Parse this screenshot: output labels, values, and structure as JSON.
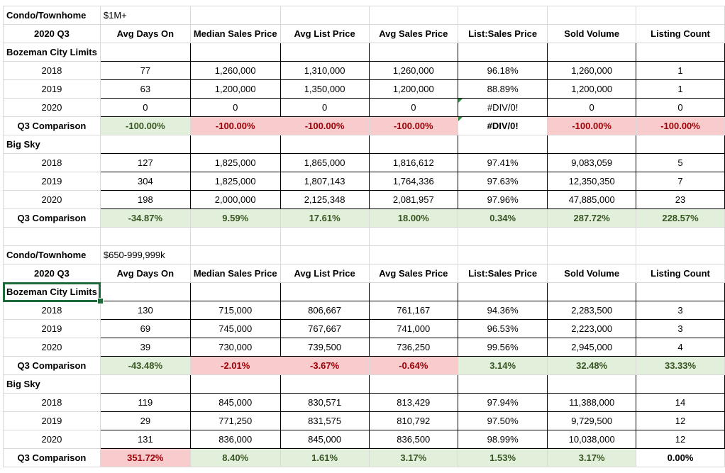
{
  "headers": [
    "2020 Q3",
    "Avg Days On",
    "Median Sales Price",
    "Avg List Price",
    "Avg Sales Price",
    "List:Sales Price",
    "Sold Volume",
    "Listing Count"
  ],
  "colors": {
    "positive_bg": "#e2efda",
    "positive_text": "#375623",
    "negative_bg": "#f8cbcc",
    "negative_text": "#9c0006",
    "selection": "#1e6a3b"
  },
  "block1": {
    "type_label": "Condo/Townhome",
    "price_range": "$1M+",
    "sections": [
      {
        "name": "Bozeman City Limits",
        "rows": [
          {
            "year": "2018",
            "cells": [
              "77",
              "1,260,000",
              "1,310,000",
              "1,260,000",
              "96.18%",
              "1,260,000",
              "1"
            ]
          },
          {
            "year": "2019",
            "cells": [
              "63",
              "1,200,000",
              "1,350,000",
              "1,200,000",
              "88.89%",
              "1,200,000",
              "1"
            ]
          },
          {
            "year": "2020",
            "cells": [
              "0",
              "0",
              "0",
              "0",
              "#DIV/0!",
              "0",
              "0"
            ]
          }
        ],
        "comparison_label": "Q3 Comparison",
        "comparison": [
          "-100.00%",
          "-100.00%",
          "-100.00%",
          "-100.00%",
          "#DIV/0!",
          "-100.00%",
          "-100.00%"
        ]
      },
      {
        "name": "Big Sky",
        "rows": [
          {
            "year": "2018",
            "cells": [
              "127",
              "1,825,000",
              "1,865,000",
              "1,816,612",
              "97.41%",
              "9,083,059",
              "5"
            ]
          },
          {
            "year": "2019",
            "cells": [
              "304",
              "1,825,000",
              "1,807,143",
              "1,764,336",
              "97.63%",
              "12,350,350",
              "7"
            ]
          },
          {
            "year": "2020",
            "cells": [
              "198",
              "2,000,000",
              "2,125,348",
              "2,081,957",
              "97.96%",
              "47,885,000",
              "23"
            ]
          }
        ],
        "comparison_label": "Q3 Comparison",
        "comparison": [
          "-34.87%",
          "9.59%",
          "17.61%",
          "18.00%",
          "0.34%",
          "287.72%",
          "228.57%"
        ]
      }
    ]
  },
  "block2": {
    "type_label": "Condo/Townhome",
    "price_range": "$650-999,999k",
    "sections": [
      {
        "name": "Bozeman City Limits",
        "rows": [
          {
            "year": "2018",
            "cells": [
              "130",
              "715,000",
              "806,667",
              "761,167",
              "94.36%",
              "2,283,500",
              "3"
            ]
          },
          {
            "year": "2019",
            "cells": [
              "69",
              "745,000",
              "767,667",
              "741,000",
              "96.53%",
              "2,223,000",
              "3"
            ]
          },
          {
            "year": "2020",
            "cells": [
              "39",
              "730,000",
              "739,500",
              "736,250",
              "99.56%",
              "2,945,000",
              "4"
            ]
          }
        ],
        "comparison_label": "Q3 Comparison",
        "comparison": [
          "-43.48%",
          "-2.01%",
          "-3.67%",
          "-0.64%",
          "3.14%",
          "32.48%",
          "33.33%"
        ]
      },
      {
        "name": "Big Sky",
        "rows": [
          {
            "year": "2018",
            "cells": [
              "119",
              "845,000",
              "830,571",
              "813,429",
              "97.94%",
              "11,388,000",
              "14"
            ]
          },
          {
            "year": "2019",
            "cells": [
              "29",
              "771,250",
              "831,575",
              "810,792",
              "97.50%",
              "9,729,500",
              "12"
            ]
          },
          {
            "year": "2020",
            "cells": [
              "131",
              "836,000",
              "845,000",
              "836,500",
              "98.99%",
              "10,038,000",
              "12"
            ]
          }
        ],
        "comparison_label": "Q3 Comparison",
        "comparison": [
          "351.72%",
          "8.40%",
          "1.61%",
          "3.17%",
          "1.53%",
          "3.17%",
          "0.00%"
        ]
      }
    ]
  }
}
